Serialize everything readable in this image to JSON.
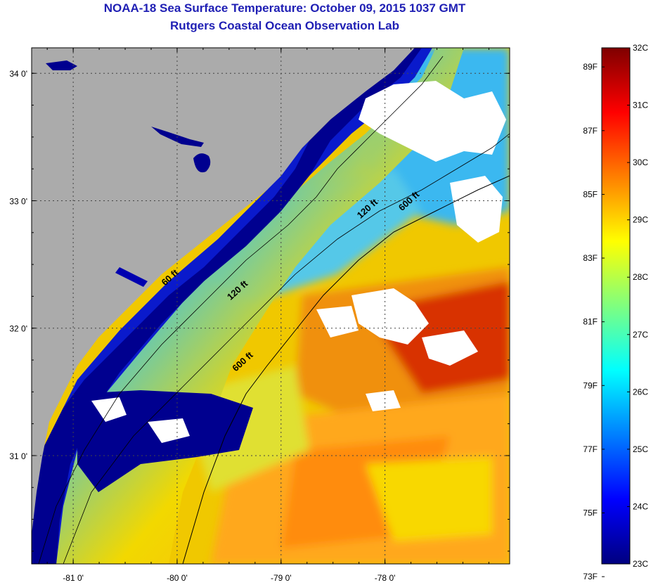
{
  "header": {
    "title": "NOAA-18 Sea Surface Temperature:  October 09, 2015 1037 GMT",
    "subtitle": "Rutgers Coastal Ocean Observation Lab"
  },
  "map": {
    "lon_range": [
      -81.4,
      -76.8
    ],
    "lat_range": [
      30.15,
      34.2
    ],
    "lon_ticks": [
      {
        "value": -81,
        "label": "-81 0'"
      },
      {
        "value": -80,
        "label": "-80 0'"
      },
      {
        "value": -79,
        "label": "-79 0'"
      },
      {
        "value": -78,
        "label": "-78 0'"
      }
    ],
    "lat_ticks": [
      {
        "value": 34,
        "label": "34 0'"
      },
      {
        "value": 33,
        "label": "33 0'"
      },
      {
        "value": 32,
        "label": "32 0'"
      },
      {
        "value": 31,
        "label": "31 0'"
      }
    ],
    "contour_labels": [
      {
        "text": "60 ft",
        "lon": -80.05,
        "lat": 32.38
      },
      {
        "text": "120 ft",
        "lon": -79.4,
        "lat": 32.28
      },
      {
        "text": "600 ft",
        "lon": -79.35,
        "lat": 31.72
      },
      {
        "text": "120 ft",
        "lon": -78.15,
        "lat": 32.92
      },
      {
        "text": "600 ft",
        "lon": -77.75,
        "lat": 32.98
      }
    ],
    "colors": {
      "land": "#ababab",
      "cloud": "#ffffff",
      "coastal_dark": "#00008f",
      "shelf_blue": "#1f6fff",
      "mid_cyan": "#35c4f0",
      "offshore_yellow": "#f2d900",
      "warm_orange": "#ff9a1a",
      "hot_red": "#d92a00"
    }
  },
  "colorbar": {
    "min_c": 23,
    "max_c": 32,
    "celsius_labels": [
      "32C",
      "31C",
      "30C",
      "29C",
      "28C",
      "27C",
      "26C",
      "25C",
      "24C",
      "23C"
    ],
    "celsius_values": [
      32,
      31,
      30,
      29,
      28,
      27,
      26,
      25,
      24,
      23
    ],
    "fahrenheit_labels": [
      "89F",
      "87F",
      "85F",
      "83F",
      "81F",
      "79F",
      "77F",
      "75F",
      "73F"
    ],
    "fahrenheit_values": [
      89,
      87,
      85,
      83,
      81,
      79,
      77,
      75,
      73
    ],
    "gradient": [
      "#00007f",
      "#0000ff",
      "#007fff",
      "#00ffff",
      "#7fff7f",
      "#ffff00",
      "#ff7f00",
      "#ff0000",
      "#7f0000"
    ]
  }
}
